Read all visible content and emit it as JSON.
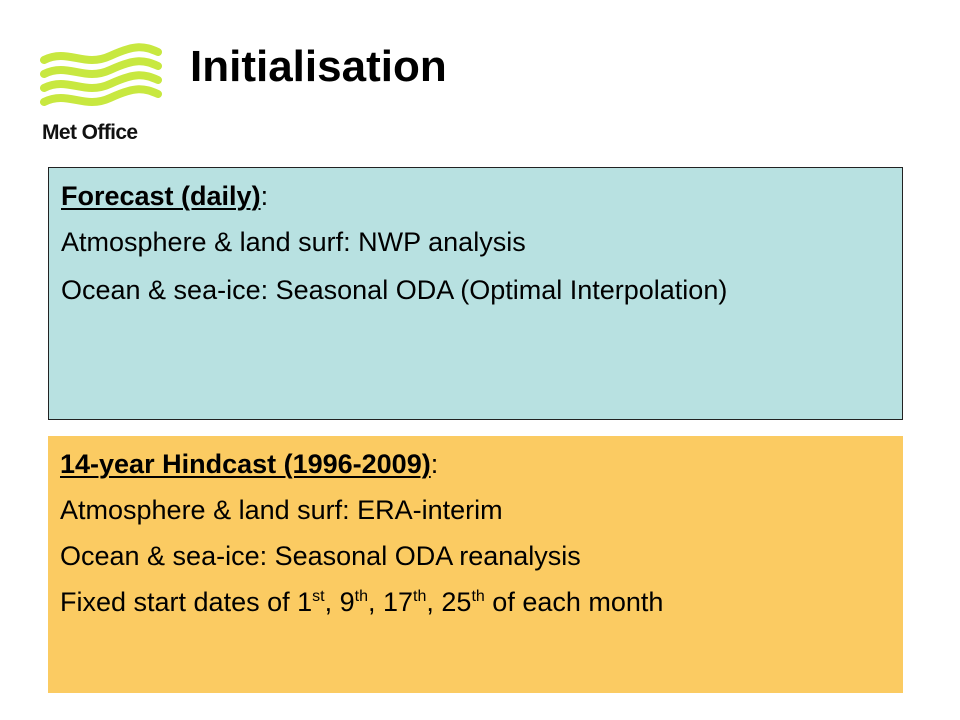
{
  "logo": {
    "text": "Met Office",
    "icon": "met-office-wave-logo",
    "color": "#c8e840"
  },
  "title": "Initialisation",
  "forecast": {
    "background": "#b8e1e1",
    "heading": "Forecast (daily)",
    "heading_suffix": ":",
    "lines": [
      "Atmosphere & land surf: NWP analysis",
      "Ocean & sea-ice: Seasonal ODA (Optimal Interpolation)"
    ]
  },
  "hindcast": {
    "background": "#fbcb62",
    "heading": "14-year Hindcast (1996-2009)",
    "heading_suffix": ":",
    "lines": [
      "Atmosphere & land surf: ERA-interim",
      "Ocean & sea-ice: Seasonal ODA reanalysis"
    ],
    "dates_line": {
      "prefix": "Fixed start dates of ",
      "d1": "1",
      "s1": "st",
      "sep1": ", ",
      "d2": "9",
      "s2": "th",
      "sep2": ", ",
      "d3": "17",
      "s3": "th",
      "sep3": ", ",
      "d4": "25",
      "s4": "th",
      "suffix": " of each month"
    }
  }
}
